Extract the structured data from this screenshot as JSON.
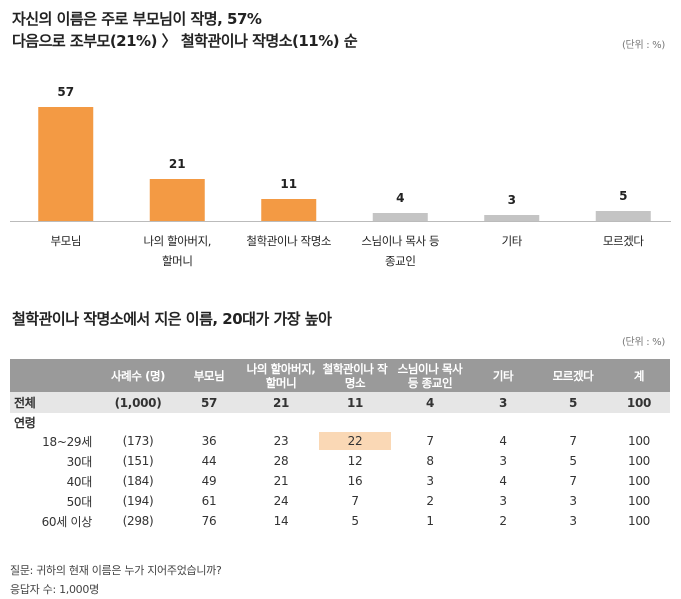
{
  "chart_title_line1": "자신의 이름은 주로 부모님이 작명, 57%",
  "chart_title_line2": "다음으로 조부모(21%) 〉 철학관이나 작명소(11%) 순",
  "unit_label": "(단위 : %)",
  "table_title": "철학관이나 작명소에서 지은 이름, 20대가 가장 높아",
  "chart_data": {
    "type": "bar",
    "categories": [
      "부모님",
      "나의 할아버지, 할머니",
      "철학관이나 작명소",
      "스님이나 목사 등 종교인",
      "기타",
      "모르겠다"
    ],
    "category_lines": [
      [
        "부모님"
      ],
      [
        "나의 할아버지,",
        "할머니"
      ],
      [
        "철학관이나 작명소"
      ],
      [
        "스님이나 목사 등",
        "종교인"
      ],
      [
        "기타"
      ],
      [
        "모르겠다"
      ]
    ],
    "values": [
      57,
      21,
      11,
      4,
      3,
      5
    ],
    "highlight_color": "#f39a44",
    "other_color": "#c4c4c4",
    "highlighted_count": 3,
    "ylim": [
      0,
      60
    ]
  },
  "table": {
    "headers": [
      "",
      "사례수 (명)",
      "부모님",
      "나의 할아버지, 할머니",
      "철학관이나 작명소",
      "스님이나 목사 등 종교인",
      "기타",
      "모르겠다",
      "계"
    ],
    "total_row": [
      "전체",
      "(1,000)",
      "57",
      "21",
      "11",
      "4",
      "3",
      "5",
      "100"
    ],
    "group_label": "연령",
    "rows": [
      [
        "18~29세",
        "(173)",
        "36",
        "23",
        "22",
        "7",
        "4",
        "7",
        "100"
      ],
      [
        "30대",
        "(151)",
        "44",
        "28",
        "12",
        "8",
        "3",
        "5",
        "100"
      ],
      [
        "40대",
        "(184)",
        "49",
        "21",
        "16",
        "3",
        "4",
        "7",
        "100"
      ],
      [
        "50대",
        "(194)",
        "61",
        "24",
        "7",
        "2",
        "3",
        "3",
        "100"
      ],
      [
        "60세 이상",
        "(298)",
        "76",
        "14",
        "5",
        "1",
        "2",
        "3",
        "100"
      ]
    ],
    "highlight_color": "#fad8b5"
  },
  "footnote_question": "질문:  귀하의 현재 이름은 누가 지어주었습니까?",
  "footnote_sample": "응답자 수: 1,000명"
}
